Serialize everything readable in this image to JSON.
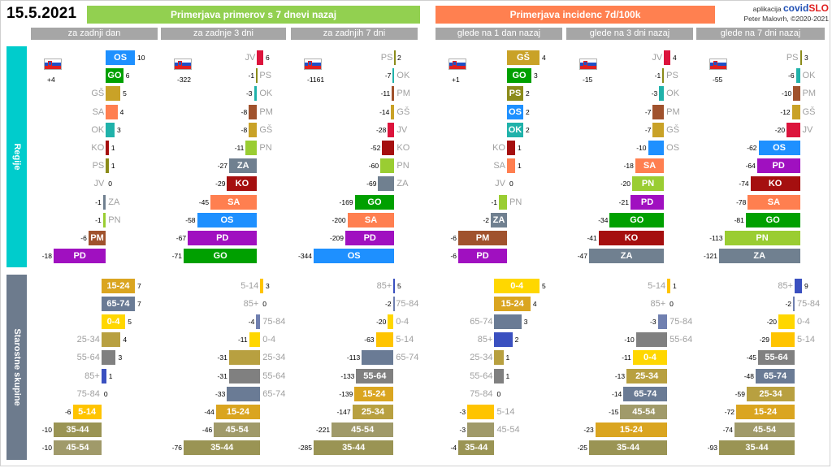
{
  "header": {
    "date": "15.5.2021",
    "banner_left": "Primerjava primerov s 7 dnevi nazaj",
    "banner_right": "Primerjava incidenc 7d/100k",
    "credits_line1": "aplikacija",
    "brand_a": "covid",
    "brand_b": "SLO",
    "credits_line2": "Peter Malovrh, ©2020-2021",
    "colors": {
      "banner_left": "#92d050",
      "banner_right": "#ff8050",
      "col_header": "#a6a6a6"
    }
  },
  "sections": [
    {
      "label": "Regije",
      "color": "#00cccc"
    },
    {
      "label": "Starostne skupine",
      "color": "#6d7b8d"
    }
  ],
  "colors": {
    "OS": "#1e90ff",
    "GO": "#00a000",
    "GŠ": "#c9a227",
    "SA": "#ff7f50",
    "OK": "#20b2aa",
    "KO": "#a50f0f",
    "PS": "#8b8b1a",
    "JV": "#dc143c",
    "ZA": "#708090",
    "PN": "#9acd32",
    "PM": "#a0522d",
    "PD": "#a010c0",
    "0-4": "#ffd700",
    "5-14": "#ffc400",
    "15-24": "#daa520",
    "25-34": "#b8a040",
    "35-44": "#9a9454",
    "45-54": "#a09a6a",
    "55-64": "#808080",
    "65-74": "#6a7b95",
    "75-84": "#7080b0",
    "85+": "#3a50c0"
  },
  "chart_data": [
    {
      "type": "bar",
      "panel": "Regije",
      "title": "za zadnji dan",
      "national": "+4",
      "categories": [
        "OS",
        "GO",
        "GŠ",
        "SA",
        "OK",
        "KO",
        "PS",
        "JV",
        "ZA",
        "PN",
        "PM",
        "PD"
      ],
      "values": [
        10,
        6,
        5,
        4,
        3,
        1,
        1,
        0,
        -1,
        -1,
        -6,
        -18
      ]
    },
    {
      "type": "bar",
      "panel": "Regije",
      "title": "za zadnje 3 dni",
      "national": "-322",
      "categories": [
        "JV",
        "PS",
        "OK",
        "PM",
        "GŠ",
        "PN",
        "ZA",
        "KO",
        "SA",
        "OS",
        "PD",
        "GO"
      ],
      "values": [
        6,
        -1,
        -3,
        -8,
        -8,
        -11,
        -27,
        -29,
        -45,
        -58,
        -67,
        -71
      ]
    },
    {
      "type": "bar",
      "panel": "Regije",
      "title": "za zadnjih 7 dni",
      "national": "-1161",
      "categories": [
        "PS",
        "OK",
        "PM",
        "GŠ",
        "JV",
        "KO",
        "PN",
        "ZA",
        "GO",
        "SA",
        "PD",
        "OS"
      ],
      "values": [
        2,
        -7,
        -11,
        -14,
        -28,
        -52,
        -60,
        -69,
        -169,
        -200,
        -209,
        -344
      ]
    },
    {
      "type": "bar",
      "panel": "Regije",
      "title": "glede na 1 dan nazaj",
      "national": "+1",
      "categories": [
        "GŠ",
        "GO",
        "PS",
        "OS",
        "OK",
        "KO",
        "SA",
        "JV",
        "PN",
        "ZA",
        "PM",
        "PD"
      ],
      "values": [
        4,
        3,
        2,
        2,
        2,
        1,
        1,
        0,
        -1,
        -2,
        -6,
        -6
      ]
    },
    {
      "type": "bar",
      "panel": "Regije",
      "title": "glede na 3 dni nazaj",
      "national": "-15",
      "categories": [
        "JV",
        "PS",
        "OK",
        "PM",
        "GŠ",
        "OS",
        "SA",
        "PN",
        "PD",
        "GO",
        "KO",
        "ZA"
      ],
      "values": [
        4,
        -1,
        -3,
        -7,
        -7,
        -10,
        -18,
        -20,
        -21,
        -34,
        -41,
        -47
      ]
    },
    {
      "type": "bar",
      "panel": "Regije",
      "title": "glede na 7 dni nazaj",
      "national": "-55",
      "categories": [
        "PS",
        "OK",
        "PM",
        "GŠ",
        "JV",
        "OS",
        "PD",
        "KO",
        "SA",
        "GO",
        "PN",
        "ZA"
      ],
      "values": [
        3,
        -6,
        -10,
        -12,
        -20,
        -62,
        -64,
        -74,
        -78,
        -81,
        -113,
        -121
      ]
    },
    {
      "type": "bar",
      "panel": "Starostne skupine",
      "title": "za zadnji dan",
      "categories": [
        "15-24",
        "65-74",
        "0-4",
        "25-34",
        "55-64",
        "85+",
        "75-84",
        "5-14",
        "35-44",
        "45-54"
      ],
      "values": [
        7,
        7,
        5,
        4,
        3,
        1,
        0,
        -6,
        -10,
        -10
      ]
    },
    {
      "type": "bar",
      "panel": "Starostne skupine",
      "title": "za zadnje 3 dni",
      "categories": [
        "5-14",
        "85+",
        "75-84",
        "0-4",
        "25-34",
        "55-64",
        "65-74",
        "15-24",
        "45-54",
        "35-44"
      ],
      "values": [
        3,
        0,
        -4,
        -11,
        -31,
        -31,
        -33,
        -44,
        -46,
        -76
      ]
    },
    {
      "type": "bar",
      "panel": "Starostne skupine",
      "title": "za zadnjih 7 dni",
      "categories": [
        "85+",
        "75-84",
        "0-4",
        "5-14",
        "65-74",
        "55-64",
        "15-24",
        "25-34",
        "45-54",
        "35-44"
      ],
      "values": [
        5,
        -2,
        -20,
        -63,
        -113,
        -133,
        -139,
        -147,
        -221,
        -285
      ]
    },
    {
      "type": "bar",
      "panel": "Starostne skupine",
      "title": "glede na 1 dan nazaj",
      "categories": [
        "0-4",
        "15-24",
        "65-74",
        "85+",
        "25-34",
        "55-64",
        "75-84",
        "5-14",
        "45-54",
        "35-44"
      ],
      "values": [
        5,
        4,
        3,
        2,
        1,
        1,
        0,
        -3,
        -3,
        -4
      ]
    },
    {
      "type": "bar",
      "panel": "Starostne skupine",
      "title": "glede na 3 dni nazaj",
      "categories": [
        "5-14",
        "85+",
        "75-84",
        "55-64",
        "0-4",
        "25-34",
        "65-74",
        "45-54",
        "15-24",
        "35-44"
      ],
      "values": [
        1,
        0,
        -3,
        -10,
        -11,
        -13,
        -14,
        -15,
        -23,
        -25
      ]
    },
    {
      "type": "bar",
      "panel": "Starostne skupine",
      "title": "glede na 7 dni nazaj",
      "categories": [
        "85+",
        "75-84",
        "0-4",
        "5-14",
        "55-64",
        "65-74",
        "25-34",
        "15-24",
        "45-54",
        "35-44"
      ],
      "values": [
        9,
        -2,
        -20,
        -29,
        -45,
        -48,
        -59,
        -72,
        -74,
        -93
      ]
    }
  ]
}
